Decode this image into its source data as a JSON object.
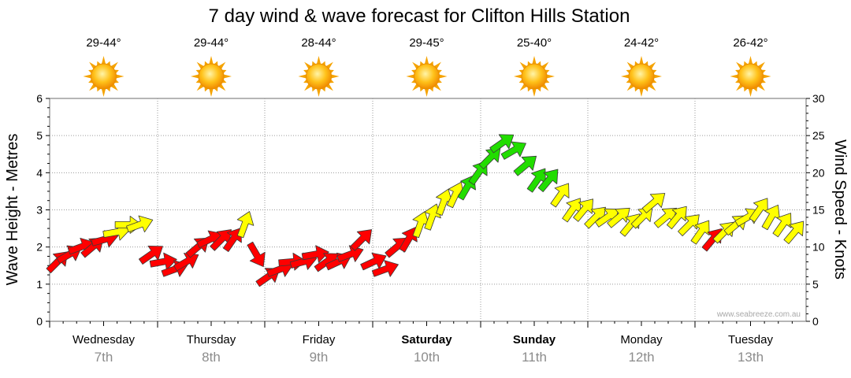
{
  "chart_data": {
    "type": "wind-wave-forecast",
    "title": "7 day wind & wave forecast for Clifton Hills Station",
    "left_axis": {
      "label": "Wave Height - Metres",
      "min": 0,
      "max": 6,
      "ticks": [
        "0",
        "1",
        "2",
        "3",
        "4",
        "5",
        "6"
      ]
    },
    "right_axis": {
      "label": "Wind Speed - Knots",
      "min": 0,
      "max": 30,
      "ticks": [
        "0",
        "5",
        "10",
        "15",
        "20",
        "25",
        "30"
      ]
    },
    "watermark": "www.seabreeze.com.au",
    "days": [
      {
        "name": "Wednesday",
        "date": "7th",
        "temp": "29-44°",
        "weather_icon": "sun-icon",
        "bold": false
      },
      {
        "name": "Thursday",
        "date": "8th",
        "temp": "29-44°",
        "weather_icon": "sun-icon",
        "bold": false
      },
      {
        "name": "Friday",
        "date": "9th",
        "temp": "28-44°",
        "weather_icon": "sun-icon",
        "bold": false
      },
      {
        "name": "Saturday",
        "date": "10th",
        "temp": "29-45°",
        "weather_icon": "sun-icon",
        "bold": true
      },
      {
        "name": "Sunday",
        "date": "11th",
        "temp": "25-40°",
        "weather_icon": "sun-icon",
        "bold": true
      },
      {
        "name": "Monday",
        "date": "12th",
        "temp": "24-42°",
        "weather_icon": "sun-icon",
        "bold": false
      },
      {
        "name": "Tuesday",
        "date": "13th",
        "temp": "26-42°",
        "weather_icon": "sun-icon",
        "bold": false
      }
    ],
    "wind_series": {
      "name": "Wind Speed",
      "units": "knots",
      "interval_hours": 3,
      "speeds": [
        8,
        9,
        10,
        10,
        11,
        12,
        13,
        13,
        9,
        8,
        7,
        8,
        10,
        11,
        11,
        11,
        13,
        9,
        6,
        7,
        8,
        8,
        9,
        8,
        8,
        9,
        11,
        8,
        7,
        10,
        11,
        13,
        14,
        16,
        17,
        18,
        20,
        22,
        24,
        23,
        21,
        19,
        19,
        17,
        15,
        15,
        14,
        14,
        14,
        13,
        14,
        16,
        14,
        14,
        13,
        12,
        11,
        12,
        13,
        14,
        15,
        14,
        13,
        12
      ],
      "directions": [
        225,
        240,
        250,
        230,
        255,
        260,
        270,
        250,
        235,
        260,
        250,
        240,
        230,
        245,
        225,
        215,
        200,
        330,
        235,
        250,
        265,
        255,
        260,
        235,
        245,
        250,
        225,
        245,
        250,
        230,
        210,
        200,
        200,
        200,
        205,
        210,
        215,
        225,
        235,
        240,
        230,
        215,
        220,
        215,
        215,
        220,
        225,
        235,
        230,
        220,
        225,
        230,
        230,
        220,
        225,
        215,
        220,
        225,
        230,
        240,
        215,
        210,
        215,
        220
      ],
      "colors": {
        "calm": "#ffff00",
        "moderate": "#ff0000",
        "strong": "#22dd00"
      }
    }
  }
}
